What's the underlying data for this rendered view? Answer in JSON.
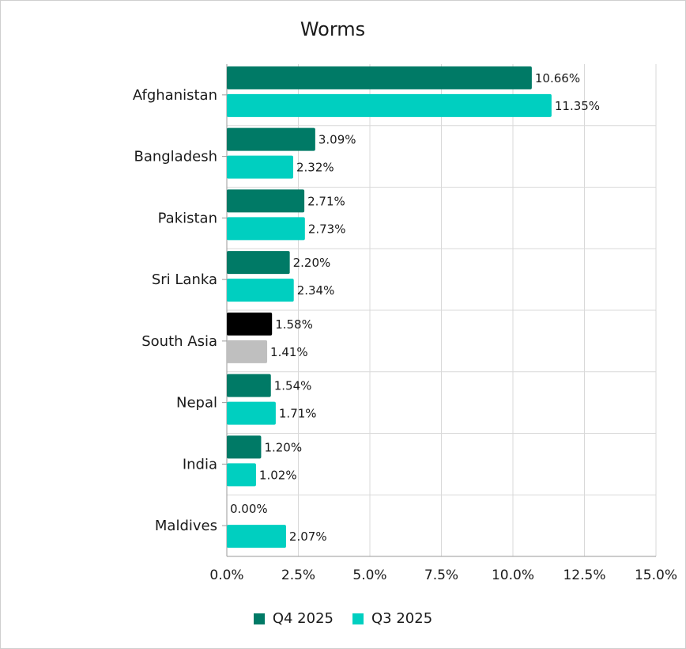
{
  "chart_data": {
    "type": "bar",
    "orientation": "horizontal",
    "title": "Worms",
    "xlabel": "",
    "ylabel": "",
    "xlim": [
      0,
      15
    ],
    "xticks": [
      "0.0%",
      "2.5%",
      "5.0%",
      "7.5%",
      "10.0%",
      "12.5%",
      "15.0%"
    ],
    "grid": true,
    "legend_position": "bottom",
    "categories": [
      "Afghanistan",
      "Bangladesh",
      "Pakistan",
      "Sri Lanka",
      "South Asia",
      "Nepal",
      "India",
      "Maldives"
    ],
    "series": [
      {
        "name": "Q4 2025",
        "color": "#007a66",
        "values": [
          10.66,
          3.09,
          2.71,
          2.2,
          1.58,
          1.54,
          1.2,
          0.0
        ],
        "labels": [
          "10.66%",
          "3.09%",
          "2.71%",
          "2.20%",
          "1.58%",
          "1.54%",
          "1.20%",
          "0.00%"
        ]
      },
      {
        "name": "Q3 2025",
        "color": "#00cfc0",
        "values": [
          11.35,
          2.32,
          2.73,
          2.34,
          1.41,
          1.71,
          1.02,
          2.07
        ],
        "labels": [
          "11.35%",
          "2.32%",
          "2.73%",
          "2.34%",
          "1.41%",
          "1.71%",
          "1.02%",
          "2.07%"
        ]
      }
    ],
    "highlight": {
      "category": "South Asia",
      "colors": [
        "#000000",
        "#bfbfbf"
      ]
    }
  }
}
